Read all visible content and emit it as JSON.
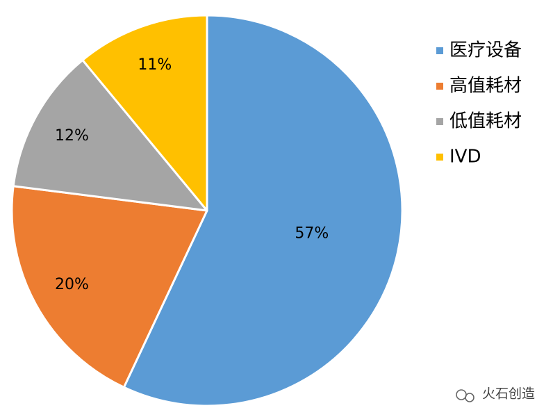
{
  "chart_data": {
    "type": "pie",
    "categories": [
      "医疗设备",
      "高值耗材",
      "低值耗材",
      "IVD"
    ],
    "values": [
      57,
      20,
      12,
      11
    ],
    "value_labels": [
      "57%",
      "20%",
      "12%",
      "11%"
    ],
    "colors": [
      "#5b9bd5",
      "#ed7d31",
      "#a5a5a5",
      "#ffc000"
    ],
    "legend": "right"
  },
  "watermark": "火石创造"
}
